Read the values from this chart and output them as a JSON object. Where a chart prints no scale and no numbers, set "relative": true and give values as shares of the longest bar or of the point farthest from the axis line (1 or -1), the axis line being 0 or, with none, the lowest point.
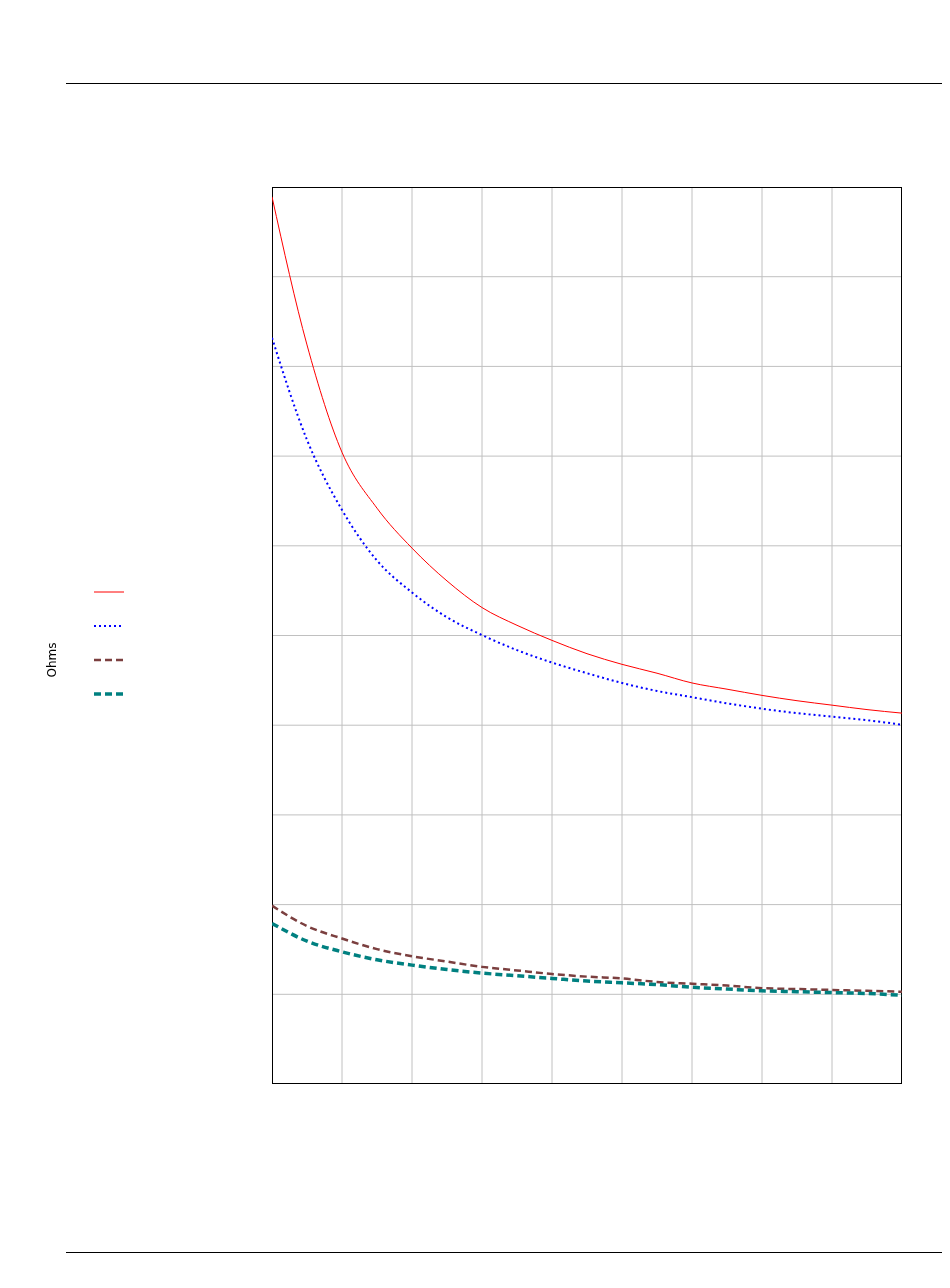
{
  "chart_data": {
    "type": "line",
    "annotations": [
      "Ohms"
    ],
    "relative": true,
    "grid": true,
    "marker": "none",
    "categories": [
      null,
      null,
      null,
      null,
      null,
      null,
      null,
      null,
      null,
      null,
      null,
      null,
      null,
      null,
      null,
      null,
      null,
      null,
      null
    ],
    "series": [
      {
        "color": "#ff0000",
        "line_style": "solid",
        "values": [
          1.0,
          0.833,
          0.712,
          0.649,
          0.604,
          0.567,
          0.537,
          0.517,
          0.5,
          0.485,
          0.473,
          0.463,
          0.452,
          0.445,
          0.438,
          0.432,
          0.427,
          0.422,
          0.418
        ]
      },
      {
        "color": "#0000ff",
        "line_style": "dotted",
        "values": [
          0.841,
          0.726,
          0.647,
          0.59,
          0.554,
          0.526,
          0.506,
          0.489,
          0.475,
          0.463,
          0.452,
          0.443,
          0.436,
          0.429,
          0.423,
          0.418,
          0.414,
          0.41,
          0.405
        ]
      },
      {
        "color": "#7b3f3f",
        "line_style": "dashed",
        "values": [
          0.201,
          0.178,
          0.164,
          0.152,
          0.144,
          0.138,
          0.132,
          0.128,
          0.124,
          0.121,
          0.119,
          0.115,
          0.113,
          0.111,
          0.108,
          0.107,
          0.106,
          0.105,
          0.104
        ]
      },
      {
        "color": "#008080",
        "line_style": "dashed",
        "values": [
          0.181,
          0.161,
          0.149,
          0.14,
          0.134,
          0.129,
          0.125,
          0.122,
          0.119,
          0.116,
          0.114,
          0.112,
          0.109,
          0.107,
          0.105,
          0.104,
          0.103,
          0.102,
          0.1
        ]
      }
    ]
  }
}
